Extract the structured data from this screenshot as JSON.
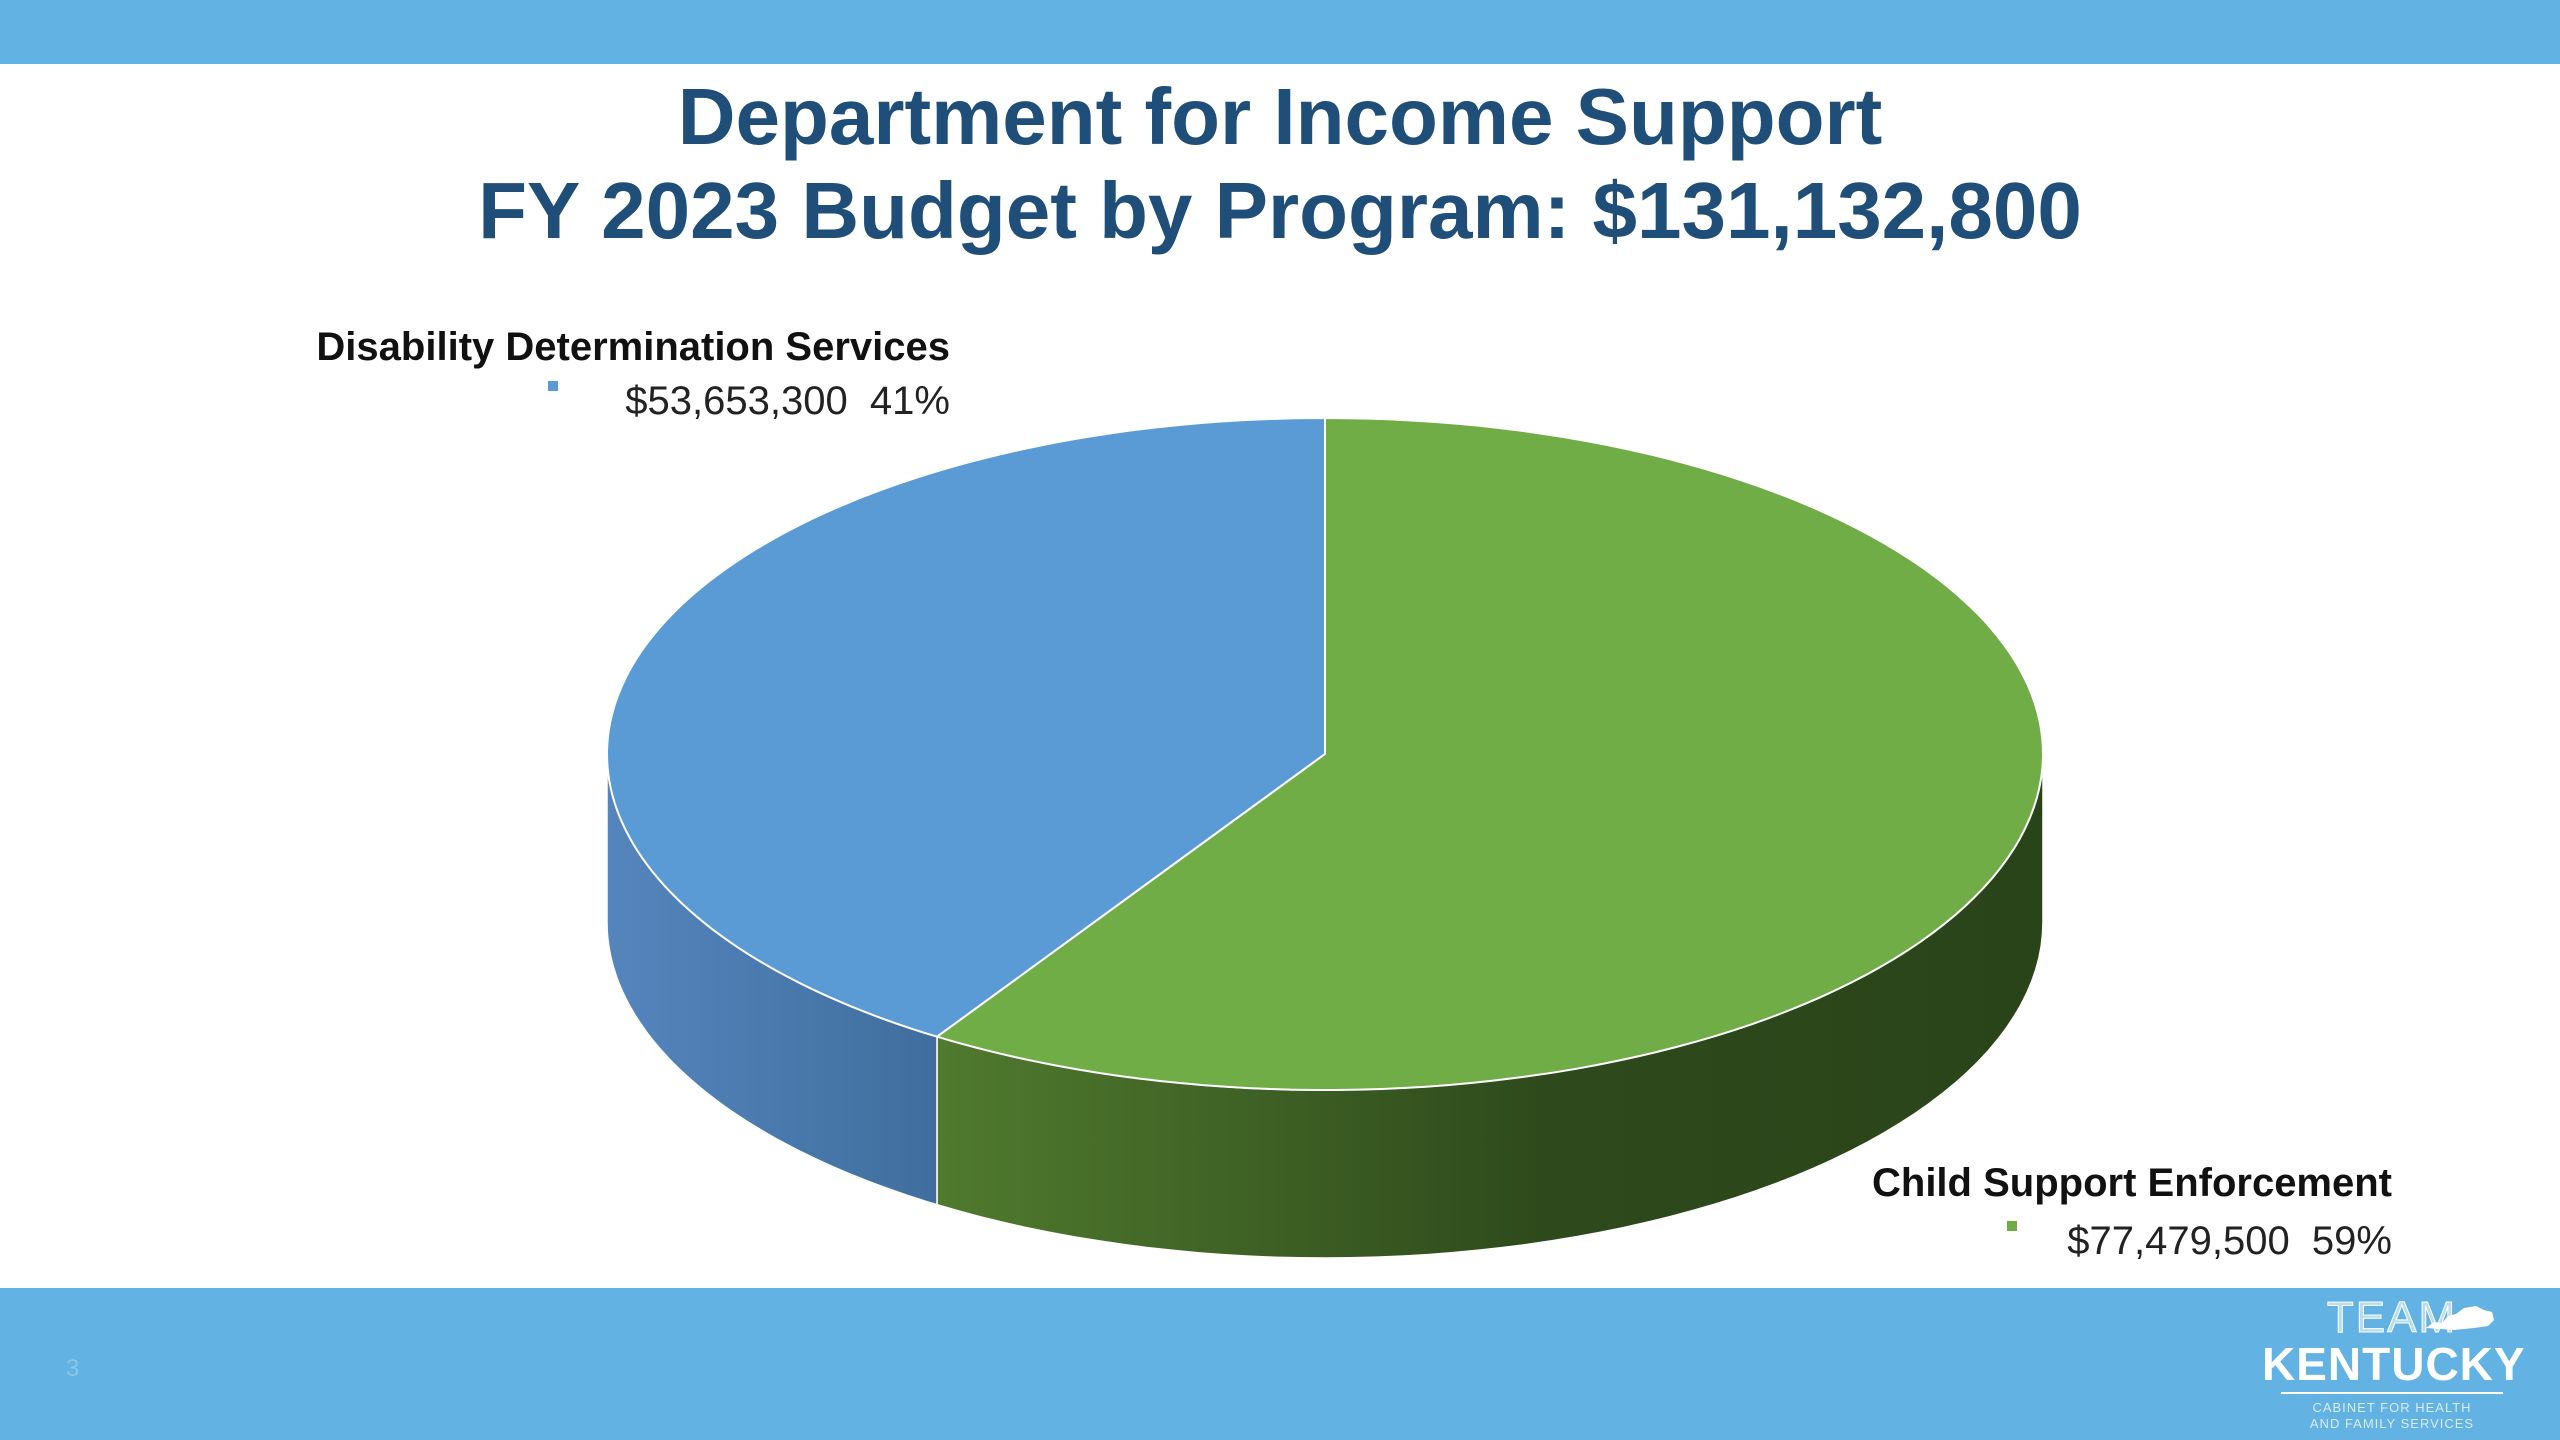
{
  "slide": {
    "title_line1": "Department for Income Support",
    "title_line2": "FY 2023 Budget by Program: $131,132,800",
    "page_number": "3"
  },
  "logo": {
    "line1": "TEAM",
    "line2": "KENTUCKY",
    "line3": "CABINET FOR HEALTH",
    "line4": "AND FAMILY SERVICES"
  },
  "colors": {
    "bar": "#62B2E4",
    "title": "#1F4E79",
    "series_blue": "#5B9BD5",
    "series_green": "#70AD47"
  },
  "chart_data": {
    "type": "pie",
    "style": "3d",
    "title": "Department for Income Support FY 2023 Budget by Program: $131,132,800",
    "slices": [
      {
        "name": "Disability Determination Services",
        "value": 53653300,
        "value_label": "$53,653,300",
        "percent": 41,
        "percent_label": "41%",
        "color": "#5B9BD5",
        "side_color_light": "#5585BD",
        "side_color_dark": "#3F6E9E"
      },
      {
        "name": "Child Support Enforcement",
        "value": 77479500,
        "value_label": "$77,479,500",
        "percent": 59,
        "percent_label": "59%",
        "color": "#70AD47",
        "side_color_light": "#507A2E",
        "side_color_dark": "#2A4419"
      }
    ]
  }
}
